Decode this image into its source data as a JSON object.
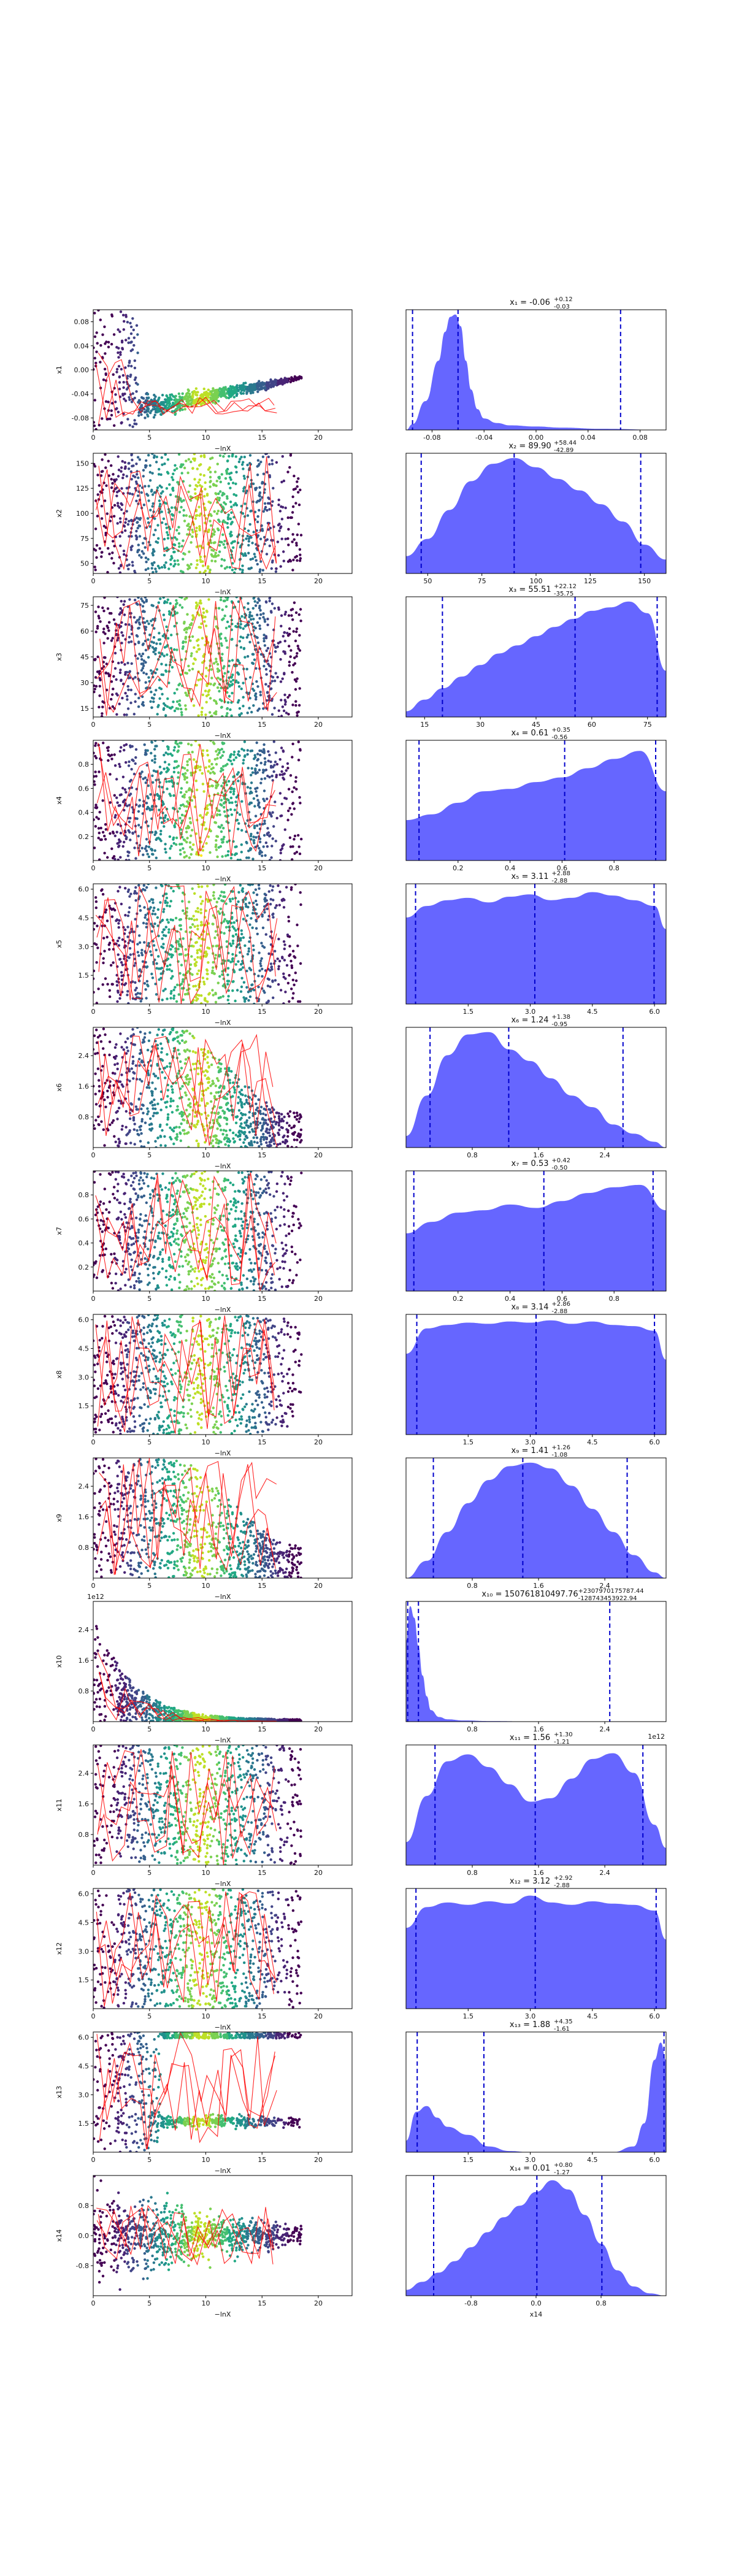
{
  "figure": {
    "type": "dynesty trace plot",
    "x_axis_label": "−lnX",
    "colors": {
      "scatter": [
        "#440154",
        "#3b528b",
        "#21918c",
        "#5ec962",
        "#fde725"
      ],
      "trace": "#ff0000",
      "posterior_fill": "#5555ff",
      "quantile_line": "#0000cc"
    }
  },
  "chart_data": [
    {
      "type": "scatter",
      "param": "x1",
      "ylabel": "x1",
      "xlabel": "",
      "xlim": [
        0,
        23
      ],
      "xticks": [
        "0",
        "5",
        "10",
        "15",
        "20"
      ],
      "yticks": [
        "-0.08",
        "-0.04",
        "0.00",
        "0.04",
        "0.08"
      ],
      "ylim": [
        -0.1,
        0.1
      ]
    },
    {
      "type": "area",
      "param": "x1",
      "title": "x1 = -0.06 +0.12 -0.03",
      "title_main": "x₁ = -0.06",
      "title_sup": "+0.12",
      "title_sub": "-0.03",
      "xticks": [
        "-0.08",
        "-0.04",
        "0.00",
        "0.04",
        "0.08"
      ],
      "xlim": [
        -0.1,
        0.1
      ],
      "quantiles": [
        -0.095,
        -0.06,
        0.065
      ],
      "density": {
        "x": [
          -0.1,
          -0.095,
          -0.085,
          -0.075,
          -0.07,
          -0.066,
          -0.062,
          -0.058,
          -0.054,
          -0.05,
          -0.045,
          -0.04,
          -0.03,
          -0.02,
          0.0,
          0.02,
          0.05,
          0.1
        ],
        "y": [
          0.0,
          0.05,
          0.25,
          0.6,
          0.85,
          0.98,
          1.0,
          0.9,
          0.6,
          0.35,
          0.18,
          0.1,
          0.06,
          0.04,
          0.03,
          0.02,
          0.01,
          0.0
        ]
      }
    },
    {
      "type": "scatter",
      "param": "x2",
      "ylabel": "x2",
      "xlabel": "",
      "xlim": [
        0,
        23
      ],
      "xticks": [
        "0",
        "5",
        "10",
        "15",
        "20"
      ],
      "yticks": [
        "50",
        "75",
        "100",
        "125",
        "150"
      ],
      "ylim": [
        40,
        160
      ]
    },
    {
      "type": "area",
      "param": "x2",
      "title": "x2 = 89.90 +58.44 -42.89",
      "title_main": "x₂ = 89.90",
      "title_sup": "+58.44",
      "title_sub": "-42.89",
      "xticks": [
        "50",
        "75",
        "100",
        "125",
        "150"
      ],
      "xlim": [
        40,
        160
      ],
      "quantiles": [
        47,
        89.9,
        148.3
      ],
      "density": {
        "x": [
          40,
          50,
          60,
          70,
          80,
          90,
          100,
          110,
          120,
          130,
          140,
          150,
          160
        ],
        "y": [
          0.15,
          0.3,
          0.55,
          0.8,
          0.95,
          1.0,
          0.92,
          0.82,
          0.72,
          0.6,
          0.45,
          0.25,
          0.12
        ]
      }
    },
    {
      "type": "scatter",
      "param": "x3",
      "ylabel": "x3",
      "xlabel": "",
      "xlim": [
        0,
        23
      ],
      "xticks": [
        "0",
        "5",
        "10",
        "15",
        "20"
      ],
      "yticks": [
        "15",
        "30",
        "45",
        "60",
        "75"
      ],
      "ylim": [
        10,
        80
      ]
    },
    {
      "type": "area",
      "param": "x3",
      "title": "x3 = 55.51 +22.12 -35.75",
      "title_main": "x₃ = 55.51",
      "title_sup": "+22.12",
      "title_sub": "-35.75",
      "xticks": [
        "15",
        "30",
        "45",
        "60",
        "75"
      ],
      "xlim": [
        10,
        80
      ],
      "quantiles": [
        19.8,
        55.5,
        77.6
      ],
      "density": {
        "x": [
          10,
          15,
          20,
          25,
          30,
          35,
          40,
          45,
          50,
          55,
          60,
          65,
          70,
          75,
          80
        ],
        "y": [
          0.05,
          0.15,
          0.25,
          0.35,
          0.45,
          0.55,
          0.62,
          0.7,
          0.78,
          0.85,
          0.92,
          0.95,
          1.0,
          0.9,
          0.4
        ]
      }
    },
    {
      "type": "scatter",
      "param": "x4",
      "ylabel": "x4",
      "xlabel": "",
      "xlim": [
        0,
        23
      ],
      "xticks": [
        "0",
        "5",
        "10",
        "15",
        "20"
      ],
      "yticks": [
        "0.2",
        "0.4",
        "0.6",
        "0.8"
      ],
      "ylim": [
        0,
        1
      ]
    },
    {
      "type": "area",
      "param": "x4",
      "title": "x4 = 0.61 +0.35 -0.56",
      "title_main": "x₄ = 0.61",
      "title_sup": "+0.35",
      "title_sub": "-0.56",
      "xticks": [
        "0.2",
        "0.4",
        "0.6",
        "0.8"
      ],
      "xlim": [
        0,
        1
      ],
      "quantiles": [
        0.05,
        0.61,
        0.96
      ],
      "density": {
        "x": [
          0,
          0.1,
          0.2,
          0.3,
          0.4,
          0.5,
          0.6,
          0.7,
          0.8,
          0.9,
          1.0
        ],
        "y": [
          0.35,
          0.4,
          0.5,
          0.6,
          0.62,
          0.68,
          0.72,
          0.8,
          0.88,
          0.95,
          0.6
        ]
      }
    },
    {
      "type": "scatter",
      "param": "x5",
      "ylabel": "x5",
      "xlabel": "",
      "xlim": [
        0,
        23
      ],
      "xticks": [
        "0",
        "5",
        "10",
        "15",
        "20"
      ],
      "yticks": [
        "1.5",
        "3.0",
        "4.5",
        "6.0"
      ],
      "ylim": [
        0,
        6.28
      ]
    },
    {
      "type": "area",
      "param": "x5",
      "title": "x5 = 3.11 +2.88 -2.88",
      "title_main": "x₅ = 3.11",
      "title_sup": "+2.88",
      "title_sub": "-2.88",
      "xticks": [
        "1.5",
        "3.0",
        "4.5",
        "6.0"
      ],
      "xlim": [
        0,
        6.28
      ],
      "quantiles": [
        0.23,
        3.11,
        5.99
      ],
      "density": {
        "x": [
          0,
          0.5,
          1,
          1.5,
          2,
          2.5,
          3,
          3.5,
          4,
          4.5,
          5,
          5.5,
          6,
          6.28
        ],
        "y": [
          0.75,
          0.85,
          0.9,
          0.92,
          0.88,
          0.93,
          0.95,
          0.9,
          0.92,
          0.97,
          0.94,
          0.9,
          0.85,
          0.65
        ]
      }
    },
    {
      "type": "scatter",
      "param": "x6",
      "ylabel": "x6",
      "xlabel": "",
      "xlim": [
        0,
        23
      ],
      "xticks": [
        "0",
        "5",
        "10",
        "15",
        "20"
      ],
      "yticks": [
        "0.8",
        "1.6",
        "2.4"
      ],
      "ylim": [
        0,
        3.14
      ]
    },
    {
      "type": "area",
      "param": "x6",
      "title": "x6 = 1.24 +1.38 -0.95",
      "title_main": "x₆ = 1.24",
      "title_sup": "+1.38",
      "title_sub": "-0.95",
      "xticks": [
        "0.8",
        "1.6",
        "2.4"
      ],
      "xlim": [
        0,
        3.14
      ],
      "quantiles": [
        0.29,
        1.24,
        2.62
      ],
      "density": {
        "x": [
          0,
          0.25,
          0.5,
          0.75,
          1,
          1.25,
          1.5,
          1.75,
          2,
          2.25,
          2.5,
          2.75,
          3,
          3.14
        ],
        "y": [
          0.1,
          0.45,
          0.8,
          0.98,
          1.0,
          0.85,
          0.75,
          0.6,
          0.45,
          0.35,
          0.2,
          0.12,
          0.05,
          0.0
        ]
      }
    },
    {
      "type": "scatter",
      "param": "x7",
      "ylabel": "x7",
      "xlabel": "",
      "xlim": [
        0,
        23
      ],
      "xticks": [
        "0",
        "5",
        "10",
        "15",
        "20"
      ],
      "yticks": [
        "0.2",
        "0.4",
        "0.6",
        "0.8"
      ],
      "ylim": [
        0,
        1
      ]
    },
    {
      "type": "area",
      "param": "x7",
      "title": "x7 = 0.53 +0.42 -0.50",
      "title_main": "x₇ = 0.53",
      "title_sup": "+0.42",
      "title_sub": "-0.50",
      "xticks": [
        "0.2",
        "0.4",
        "0.6",
        "0.8"
      ],
      "xlim": [
        0,
        1
      ],
      "quantiles": [
        0.03,
        0.53,
        0.95
      ],
      "density": {
        "x": [
          0,
          0.1,
          0.2,
          0.3,
          0.4,
          0.5,
          0.6,
          0.7,
          0.8,
          0.9,
          1.0
        ],
        "y": [
          0.5,
          0.6,
          0.68,
          0.7,
          0.75,
          0.72,
          0.78,
          0.85,
          0.9,
          0.92,
          0.7
        ]
      }
    },
    {
      "type": "scatter",
      "param": "x8",
      "ylabel": "x8",
      "xlabel": "",
      "xlim": [
        0,
        23
      ],
      "xticks": [
        "0",
        "5",
        "10",
        "15",
        "20"
      ],
      "yticks": [
        "1.5",
        "3.0",
        "4.5",
        "6.0"
      ],
      "ylim": [
        0,
        6.28
      ]
    },
    {
      "type": "area",
      "param": "x8",
      "title": "x8 = 3.14 +2.86 -2.88",
      "title_main": "x₈ = 3.14",
      "title_sup": "+2.86",
      "title_sub": "-2.88",
      "xticks": [
        "1.5",
        "3.0",
        "4.5",
        "6.0"
      ],
      "xlim": [
        0,
        6.28
      ],
      "quantiles": [
        0.26,
        3.14,
        6.0
      ],
      "density": {
        "x": [
          0,
          0.5,
          1,
          1.5,
          2,
          2.5,
          3,
          3.5,
          4,
          4.5,
          5,
          5.5,
          6,
          6.28
        ],
        "y": [
          0.7,
          0.92,
          0.95,
          0.97,
          0.96,
          0.98,
          0.97,
          0.99,
          0.96,
          0.98,
          0.95,
          0.94,
          0.9,
          0.65
        ]
      }
    },
    {
      "type": "scatter",
      "param": "x9",
      "ylabel": "x9",
      "xlabel": "",
      "xlim": [
        0,
        23
      ],
      "xticks": [
        "0",
        "5",
        "10",
        "15",
        "20"
      ],
      "yticks": [
        "0.8",
        "1.6",
        "2.4"
      ],
      "ylim": [
        0,
        3.14
      ]
    },
    {
      "type": "area",
      "param": "x9",
      "title": "x9 = 1.41 +1.26 -1.08",
      "title_main": "x₉ = 1.41",
      "title_sup": "+1.26",
      "title_sub": "-1.08",
      "xticks": [
        "0.8",
        "1.6",
        "2.4"
      ],
      "xlim": [
        0,
        3.14
      ],
      "quantiles": [
        0.33,
        1.41,
        2.67
      ],
      "density": {
        "x": [
          0,
          0.25,
          0.5,
          0.75,
          1,
          1.25,
          1.5,
          1.75,
          2,
          2.25,
          2.5,
          2.75,
          3,
          3.14
        ],
        "y": [
          0.0,
          0.15,
          0.4,
          0.65,
          0.85,
          0.97,
          1.0,
          0.95,
          0.8,
          0.6,
          0.4,
          0.2,
          0.05,
          0.0
        ]
      }
    },
    {
      "type": "scatter",
      "param": "x10",
      "ylabel": "x10",
      "xlabel": "",
      "xlim": [
        0,
        23
      ],
      "xticks": [
        "0",
        "5",
        "10",
        "15",
        "20"
      ],
      "yticks": [
        "0.8",
        "1.6",
        "2.4"
      ],
      "ylim": [
        0,
        3.14
      ],
      "y_offset_label": "1e12"
    },
    {
      "type": "area",
      "param": "x10",
      "title": "x10 = 150761810497.76 +2307970175787.44 -128743453922.94",
      "title_main": "x₁₀ = 150761810497.76",
      "title_sup": "+2307970175787.44",
      "title_sub": "-128743453922.94",
      "xticks": [
        "0.8",
        "1.6",
        "2.4"
      ],
      "xlim": [
        0,
        3.14
      ],
      "x_offset_label": "1e12",
      "quantiles": [
        0.02,
        0.15,
        2.46
      ],
      "density": {
        "x": [
          0,
          0.05,
          0.1,
          0.15,
          0.2,
          0.25,
          0.3,
          0.4,
          0.5,
          0.7,
          1,
          1.5,
          2,
          3.14
        ],
        "y": [
          0.7,
          1.0,
          0.9,
          0.65,
          0.4,
          0.22,
          0.1,
          0.04,
          0.02,
          0.01,
          0.005,
          0.002,
          0.001,
          0.0
        ]
      }
    },
    {
      "type": "scatter",
      "param": "x11",
      "ylabel": "x11",
      "xlabel": "",
      "xlim": [
        0,
        23
      ],
      "xticks": [
        "0",
        "5",
        "10",
        "15",
        "20"
      ],
      "yticks": [
        "0.8",
        "1.6",
        "2.4"
      ],
      "ylim": [
        0,
        3.14
      ]
    },
    {
      "type": "area",
      "param": "x11",
      "title": "x11 = 1.56 +1.30 -1.21",
      "title_main": "x₁₁ = 1.56",
      "title_sup": "+1.30",
      "title_sub": "-1.21",
      "xticks": [
        "0.8",
        "1.6",
        "2.4"
      ],
      "xlim": [
        0,
        3.14
      ],
      "quantiles": [
        0.35,
        1.56,
        2.86
      ],
      "density": {
        "x": [
          0,
          0.25,
          0.5,
          0.75,
          1,
          1.25,
          1.5,
          1.75,
          2,
          2.25,
          2.5,
          2.75,
          3,
          3.14
        ],
        "y": [
          0.2,
          0.6,
          0.9,
          0.96,
          0.85,
          0.7,
          0.55,
          0.58,
          0.75,
          0.92,
          0.97,
          0.8,
          0.35,
          0.15
        ]
      }
    },
    {
      "type": "scatter",
      "param": "x12",
      "ylabel": "x12",
      "xlabel": "",
      "xlim": [
        0,
        23
      ],
      "xticks": [
        "0",
        "5",
        "10",
        "15",
        "20"
      ],
      "yticks": [
        "1.5",
        "3.0",
        "4.5",
        "6.0"
      ],
      "ylim": [
        0,
        6.28
      ]
    },
    {
      "type": "area",
      "param": "x12",
      "title": "x12 = 3.12 +2.92 -2.88",
      "title_main": "x₁₂ = 3.12",
      "title_sup": "+2.92",
      "title_sub": "-2.88",
      "xticks": [
        "1.5",
        "3.0",
        "4.5",
        "6.0"
      ],
      "xlim": [
        0,
        6.28
      ],
      "quantiles": [
        0.24,
        3.12,
        6.04
      ],
      "density": {
        "x": [
          0,
          0.5,
          1,
          1.5,
          2,
          2.5,
          3,
          3.5,
          4,
          4.5,
          5,
          5.5,
          6,
          6.28
        ],
        "y": [
          0.7,
          0.88,
          0.92,
          0.9,
          0.93,
          0.91,
          0.98,
          0.92,
          0.9,
          0.93,
          0.91,
          0.9,
          0.85,
          0.6
        ]
      }
    },
    {
      "type": "scatter",
      "param": "x13",
      "ylabel": "x13",
      "xlabel": "",
      "xlim": [
        0,
        23
      ],
      "xticks": [
        "0",
        "5",
        "10",
        "15",
        "20"
      ],
      "yticks": [
        "1.5",
        "3.0",
        "4.5",
        "6.0"
      ],
      "ylim": [
        0,
        6.28
      ]
    },
    {
      "type": "area",
      "param": "x13",
      "title": "x13 = 1.88 +4.35 -1.61",
      "title_main": "x₁₃ = 1.88",
      "title_sup": "+4.35",
      "title_sub": "-1.61",
      "xticks": [
        "1.5",
        "3.0",
        "4.5",
        "6.0"
      ],
      "xlim": [
        0,
        6.28
      ],
      "quantiles": [
        0.27,
        1.88,
        6.23
      ],
      "density": {
        "x": [
          0,
          0.25,
          0.5,
          0.75,
          1,
          1.5,
          2,
          2.5,
          3,
          4,
          5,
          5.5,
          5.75,
          6,
          6.15,
          6.28
        ],
        "y": [
          0.1,
          0.35,
          0.4,
          0.3,
          0.22,
          0.15,
          0.05,
          0.01,
          0.0,
          0.0,
          0.0,
          0.05,
          0.25,
          0.8,
          0.95,
          0.8
        ]
      }
    },
    {
      "type": "scatter",
      "param": "x14",
      "ylabel": "x14",
      "xlabel": "−lnX",
      "xlim": [
        0,
        23
      ],
      "xticks": [
        "0",
        "5",
        "10",
        "15",
        "20"
      ],
      "yticks": [
        "-0.8",
        "0.0",
        "0.8"
      ],
      "ylim": [
        -1.6,
        1.6
      ]
    },
    {
      "type": "area",
      "param": "x14",
      "title": "x14 = 0.01 +0.80 -1.27",
      "title_main": "x₁₄ = 0.01",
      "title_sup": "+0.80",
      "title_sub": "-1.27",
      "xticks": [
        "-0.8",
        "0.0",
        "0.8"
      ],
      "xlim": [
        -1.6,
        1.6
      ],
      "xlabel": "x14",
      "quantiles": [
        -1.26,
        0.01,
        0.81
      ],
      "density": {
        "x": [
          -1.6,
          -1.4,
          -1.2,
          -1.0,
          -0.8,
          -0.6,
          -0.4,
          -0.2,
          0.0,
          0.2,
          0.4,
          0.6,
          0.8,
          1.0,
          1.2,
          1.4,
          1.6
        ],
        "y": [
          0.05,
          0.12,
          0.2,
          0.3,
          0.42,
          0.55,
          0.68,
          0.78,
          0.9,
          1.0,
          0.92,
          0.7,
          0.45,
          0.22,
          0.08,
          0.02,
          0.0
        ]
      }
    }
  ]
}
